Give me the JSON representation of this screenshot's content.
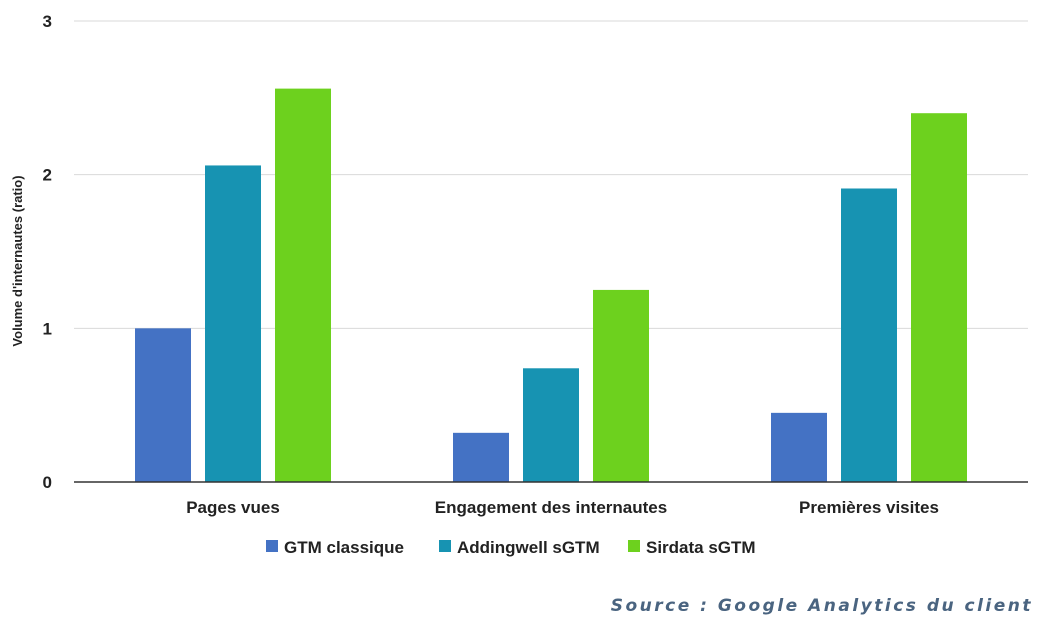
{
  "chart_data": {
    "type": "bar",
    "categories": [
      "Pages vues",
      "Engagement des internautes",
      "Premières visites"
    ],
    "series": [
      {
        "name": "GTM classique",
        "color": "#4472c4",
        "values": [
          1.0,
          0.32,
          0.45
        ]
      },
      {
        "name": "Addingwell sGTM",
        "color": "#1793b2",
        "values": [
          2.06,
          0.74,
          1.91
        ]
      },
      {
        "name": "Sirdata sGTM",
        "color": "#6dd11e",
        "values": [
          2.56,
          1.25,
          2.4
        ]
      }
    ],
    "title": "",
    "xlabel": "",
    "ylabel": "Volume d'internautes (ratio)",
    "ylim": [
      0,
      3
    ],
    "yticks": [
      "0",
      "1",
      "2",
      "3"
    ],
    "grid": true,
    "legend_position": "bottom"
  },
  "source_note": "Source : Google Analytics du client"
}
